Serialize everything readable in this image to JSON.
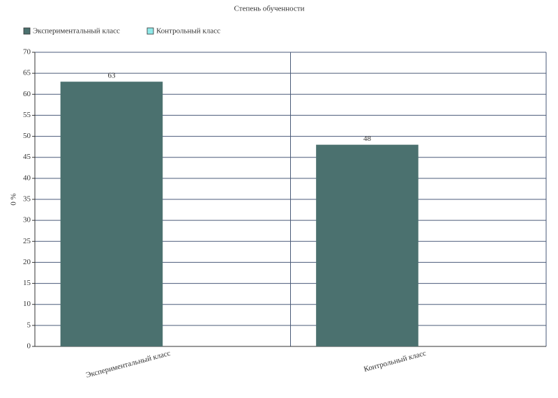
{
  "chart_data": {
    "type": "bar",
    "title": "Степень обученности",
    "y_label": "0 %",
    "categories": [
      "Экспериментальный класс",
      "Контрольный класс"
    ],
    "series": [
      {
        "name": "Экспериментальный класс",
        "color": "#4b716f",
        "values": [
          63,
          48
        ]
      },
      {
        "name": "Контрольный класс",
        "color": "#8fe9e9",
        "values": [
          null,
          null
        ]
      }
    ],
    "ylim": [
      0,
      70
    ],
    "yticks": [
      0,
      5,
      10,
      15,
      20,
      25,
      30,
      35,
      40,
      45,
      50,
      55,
      60,
      65,
      70
    ],
    "grid": true,
    "legend": "top-left"
  }
}
